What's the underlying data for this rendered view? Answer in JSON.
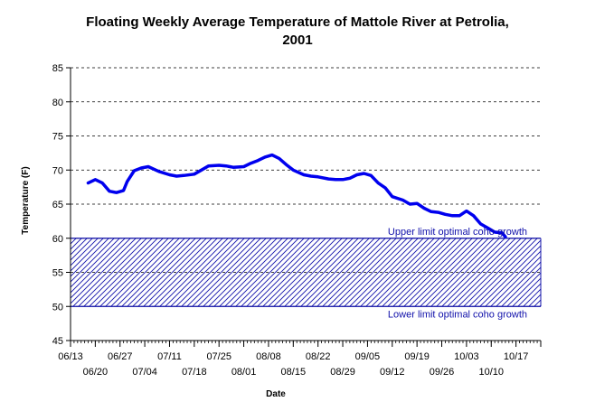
{
  "chart_data": {
    "type": "line",
    "title": [
      "Floating Weekly Average Temperature of Mattole River at Petrolia,",
      "2001"
    ],
    "xlabel": "Date",
    "ylabel": "Temperature (F)",
    "ylim": [
      45,
      85
    ],
    "yticks": [
      45,
      50,
      55,
      60,
      65,
      70,
      75,
      80,
      85
    ],
    "x_range": [
      "2001-06-13",
      "2001-10-24"
    ],
    "x_ticks_upper": [
      "06/13",
      "06/27",
      "07/11",
      "07/25",
      "08/08",
      "08/22",
      "09/05",
      "09/19",
      "10/03",
      "10/17"
    ],
    "x_ticks_lower": [
      "06/20",
      "07/04",
      "07/18",
      "08/01",
      "08/15",
      "08/29",
      "09/12",
      "09/26",
      "10/10"
    ],
    "grid": "horizontal dashed",
    "colors": {
      "series": "#0000ee",
      "band": "#1010aa",
      "grid": "#000000"
    },
    "band": {
      "ymin": 50,
      "ymax": 60,
      "pattern": "diagonal hatch",
      "upper_label": "Upper limit optimal coho growth",
      "lower_label": "Lower limit optimal coho growth"
    },
    "series": [
      {
        "name": "",
        "x": [
          "2001-06-18",
          "2001-06-20",
          "2001-06-22",
          "2001-06-24",
          "2001-06-26",
          "2001-06-28",
          "2001-06-29",
          "2001-07-01",
          "2001-07-03",
          "2001-07-05",
          "2001-07-08",
          "2001-07-11",
          "2001-07-13",
          "2001-07-15",
          "2001-07-18",
          "2001-07-20",
          "2001-07-22",
          "2001-07-25",
          "2001-07-27",
          "2001-07-29",
          "2001-08-01",
          "2001-08-03",
          "2001-08-05",
          "2001-08-07",
          "2001-08-09",
          "2001-08-11",
          "2001-08-13",
          "2001-08-15",
          "2001-08-18",
          "2001-08-20",
          "2001-08-22",
          "2001-08-25",
          "2001-08-27",
          "2001-08-29",
          "2001-08-31",
          "2001-09-02",
          "2001-09-04",
          "2001-09-06",
          "2001-09-08",
          "2001-09-10",
          "2001-09-12",
          "2001-09-15",
          "2001-09-17",
          "2001-09-19",
          "2001-09-21",
          "2001-09-23",
          "2001-09-25",
          "2001-09-27",
          "2001-09-29",
          "2001-10-01",
          "2001-10-03",
          "2001-10-05",
          "2001-10-07",
          "2001-10-09",
          "2001-10-11",
          "2001-10-13",
          "2001-10-14"
        ],
        "values": [
          68.1,
          68.6,
          68.1,
          66.9,
          66.7,
          67.0,
          68.3,
          69.9,
          70.3,
          70.5,
          69.8,
          69.3,
          69.1,
          69.2,
          69.4,
          70.0,
          70.6,
          70.7,
          70.6,
          70.4,
          70.5,
          71.0,
          71.4,
          71.9,
          72.2,
          71.7,
          70.8,
          70.0,
          69.3,
          69.1,
          69.0,
          68.7,
          68.6,
          68.6,
          68.8,
          69.3,
          69.5,
          69.2,
          68.1,
          67.4,
          66.1,
          65.6,
          65.0,
          65.1,
          64.4,
          63.9,
          63.8,
          63.5,
          63.3,
          63.3,
          64.0,
          63.3,
          62.1,
          61.5,
          60.9,
          60.8,
          60.2
        ]
      }
    ]
  }
}
